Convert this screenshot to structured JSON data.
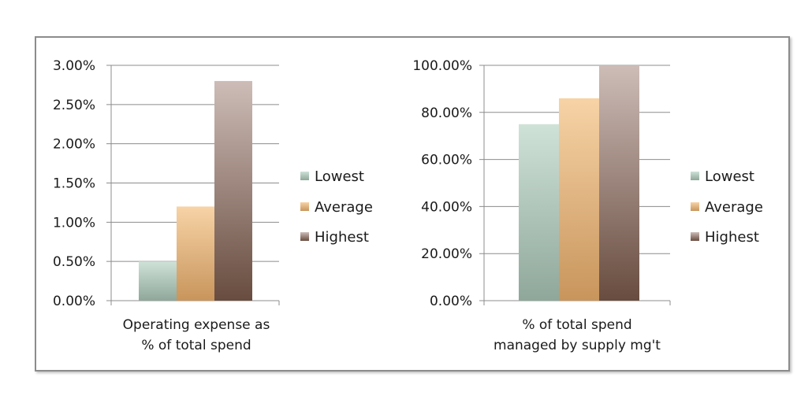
{
  "colors": {
    "lowest": [
      "#cfe2d8",
      "#8fa79a"
    ],
    "average": [
      "#f7d3a6",
      "#c8955c"
    ],
    "highest": [
      "#cdbcb7",
      "#684c3f"
    ],
    "grid": "#8c8c8c",
    "frame": "#8c8c8c"
  },
  "chart_data": [
    {
      "type": "bar",
      "title": "",
      "xlabel": "",
      "ylabel": "",
      "categories": [
        "Operating expense as % of total spend"
      ],
      "category_lines": [
        "Operating expense as",
        "% of total spend"
      ],
      "series": [
        {
          "name": "Lowest",
          "values": [
            0.5
          ],
          "color_key": "lowest"
        },
        {
          "name": "Average",
          "values": [
            1.2
          ],
          "color_key": "average"
        },
        {
          "name": "Highest",
          "values": [
            2.8
          ],
          "color_key": "highest"
        }
      ],
      "ylim": [
        0,
        3
      ],
      "yticks": [
        0,
        0.5,
        1,
        1.5,
        2,
        2.5,
        3
      ],
      "ytick_labels": [
        "0.00%",
        "0.50%",
        "1.00%",
        "1.50%",
        "2.00%",
        "2.50%",
        "3.00%"
      ],
      "grid": true,
      "legend": "right"
    },
    {
      "type": "bar",
      "title": "",
      "xlabel": "",
      "ylabel": "",
      "categories": [
        "% of total spend managed by supply mg't"
      ],
      "category_lines": [
        "% of total spend",
        "managed by supply mg't"
      ],
      "series": [
        {
          "name": "Lowest",
          "values": [
            75
          ],
          "color_key": "lowest"
        },
        {
          "name": "Average",
          "values": [
            86
          ],
          "color_key": "average"
        },
        {
          "name": "Highest",
          "values": [
            100
          ],
          "color_key": "highest"
        }
      ],
      "ylim": [
        0,
        100
      ],
      "yticks": [
        0,
        20,
        40,
        60,
        80,
        100
      ],
      "ytick_labels": [
        "0.00%",
        "20.00%",
        "40.00%",
        "60.00%",
        "80.00%",
        "100.00%"
      ],
      "grid": true,
      "legend": "right"
    }
  ]
}
